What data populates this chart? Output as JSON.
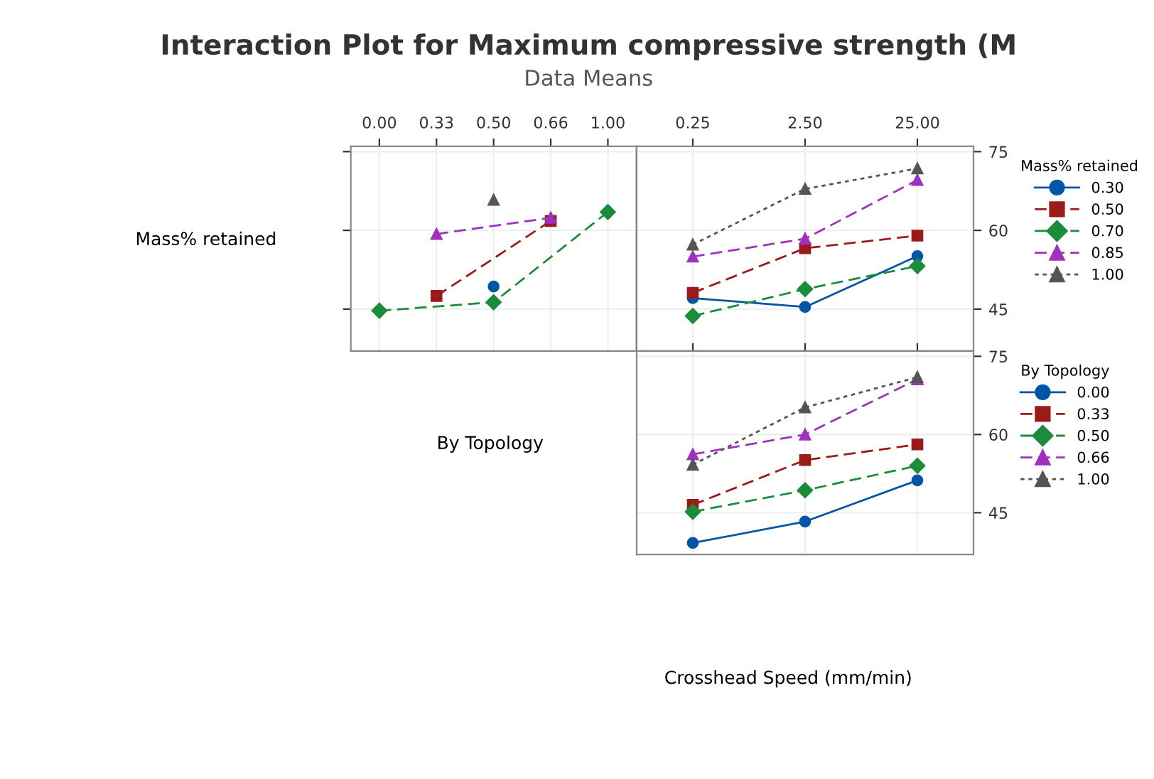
{
  "chart_data": [
    {
      "type": "line",
      "title": "Interaction Plot for Maximum compressive strength (M",
      "subtitle": "Data Means",
      "ylabel": "Mass% retained",
      "categories": [
        "0.00",
        "0.33",
        "0.50",
        "0.66",
        "1.00"
      ],
      "ylim": [
        37,
        76
      ],
      "yticks": [
        45,
        60,
        75
      ],
      "tick_labels": "x",
      "grid": true,
      "legend": false,
      "series": [
        {
          "color": "#0055a5",
          "marker": "circle",
          "line_style": "solid",
          "values": [
            null,
            null,
            49.3,
            null,
            null
          ]
        },
        {
          "color": "#9b1b1b",
          "marker": "square",
          "line_style": "dashed",
          "values": [
            null,
            47.5,
            null,
            61.8,
            null
          ]
        },
        {
          "color": "#1a8c3a",
          "marker": "diamond",
          "line_style": "dashed",
          "values": [
            44.7,
            null,
            46.3,
            null,
            63.5
          ]
        },
        {
          "color": "#a030c0",
          "marker": "triangle",
          "line_style": "dashed",
          "values": [
            null,
            59.3,
            null,
            62.4,
            null
          ]
        },
        {
          "color": "#555555",
          "marker": "triangle",
          "line_style": "dotted",
          "values": [
            null,
            null,
            65.8,
            null,
            null
          ]
        }
      ]
    },
    {
      "type": "line",
      "legend_title": "Mass% retained",
      "categories": [
        "0.25",
        "2.50",
        "25.00"
      ],
      "ylim": [
        37,
        76
      ],
      "yticks": [
        45,
        60,
        75
      ],
      "grid": true,
      "legend": "right",
      "series": [
        {
          "name": "0.30",
          "color": "#0055a5",
          "marker": "circle",
          "line_style": "solid",
          "values": [
            47.1,
            45.4,
            55.1
          ]
        },
        {
          "name": "0.50",
          "color": "#9b1b1b",
          "marker": "square",
          "line_style": "dashed",
          "values": [
            48.1,
            56.6,
            59.0
          ]
        },
        {
          "name": "0.70",
          "color": "#1a8c3a",
          "marker": "diamond",
          "line_style": "dashed",
          "values": [
            43.7,
            48.8,
            53.2
          ]
        },
        {
          "name": "0.85",
          "color": "#a030c0",
          "marker": "triangle",
          "line_style": "dashed",
          "values": [
            55.0,
            58.4,
            69.6
          ]
        },
        {
          "name": "1.00",
          "color": "#555555",
          "marker": "triangle",
          "line_style": "dotted",
          "values": [
            57.3,
            67.9,
            71.8
          ]
        }
      ]
    },
    {
      "type": "line",
      "ylabel": "By Topology",
      "xlabel": "Crosshead Speed (mm/min)",
      "legend_title": "By Topology",
      "categories": [
        "0.25",
        "2.50",
        "25.00"
      ],
      "ylim": [
        37,
        76
      ],
      "yticks": [
        45,
        60,
        75
      ],
      "tick_labels": "y",
      "grid": true,
      "legend": "right",
      "series": [
        {
          "name": "0.00",
          "color": "#0055a5",
          "marker": "circle",
          "line_style": "solid",
          "values": [
            39.2,
            43.3,
            51.2
          ]
        },
        {
          "name": "0.33",
          "color": "#9b1b1b",
          "marker": "square",
          "line_style": "dashed",
          "values": [
            46.5,
            55.1,
            58.1
          ]
        },
        {
          "name": "0.50",
          "color": "#1a8c3a",
          "marker": "diamond",
          "line_style": "dashed",
          "values": [
            45.2,
            49.3,
            54.0
          ]
        },
        {
          "name": "0.66",
          "color": "#a030c0",
          "marker": "triangle",
          "line_style": "dashed",
          "values": [
            56.2,
            60.0,
            70.6
          ]
        },
        {
          "name": "1.00",
          "color": "#555555",
          "marker": "triangle",
          "line_style": "dotted",
          "values": [
            54.2,
            65.2,
            71.0
          ]
        }
      ]
    }
  ]
}
